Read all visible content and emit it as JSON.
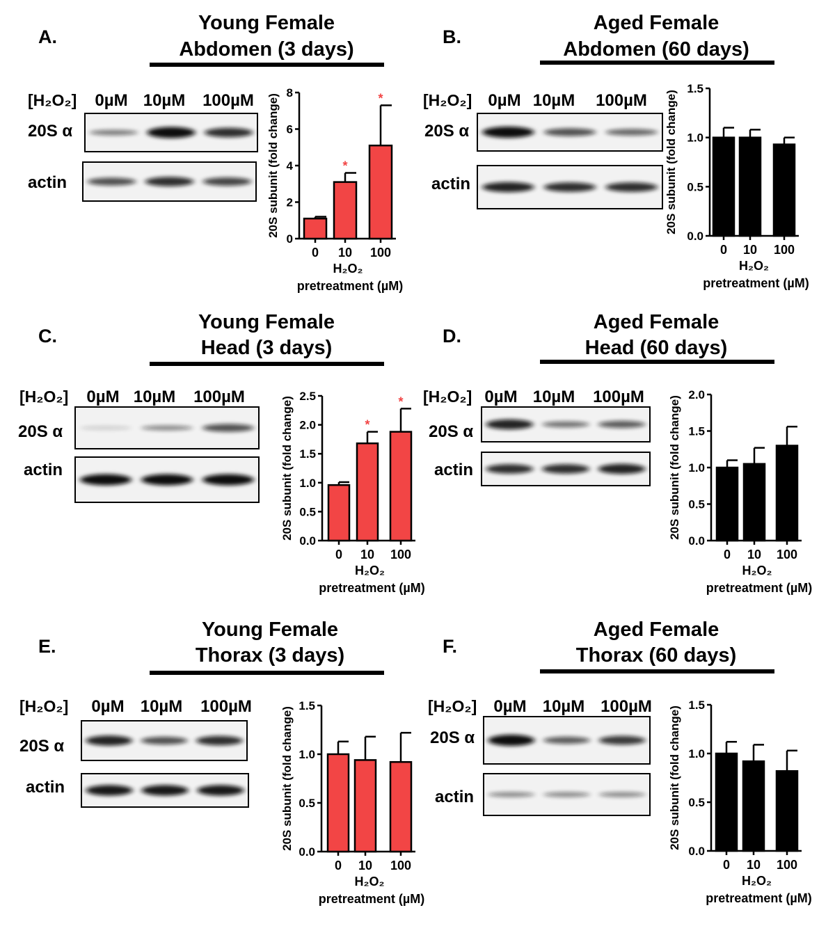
{
  "h2o2_label": "[H₂O₂]",
  "lane_labels": [
    "0µM",
    "10µM",
    "100µM"
  ],
  "row_labels": [
    "20S α",
    "actin"
  ],
  "colors": {
    "young": "#f24545",
    "aged": "#000000",
    "significance": "#f24545"
  },
  "chart_data": [
    {
      "panel": "A.",
      "title": [
        "Young Female",
        "Abdomen (3 days)"
      ],
      "type": "bar",
      "categories": [
        "0",
        "10",
        "100"
      ],
      "values": [
        1.1,
        3.1,
        5.1
      ],
      "errors": [
        0.1,
        0.5,
        2.2
      ],
      "significant": [
        false,
        true,
        true
      ],
      "significance_mark": "*",
      "ylim": [
        0,
        8
      ],
      "yticks": [
        "0",
        "2",
        "4",
        "6",
        "8"
      ],
      "ylabel": "20S subunit (fold change)",
      "xlabel": [
        "H₂O₂",
        "pretreatment (µM)"
      ],
      "series_color": "young"
    },
    {
      "panel": "B.",
      "title": [
        "Aged Female",
        "Abdomen (60 days)"
      ],
      "type": "bar",
      "categories": [
        "0",
        "10",
        "100"
      ],
      "values": [
        1.0,
        1.0,
        0.93
      ],
      "errors": [
        0.1,
        0.08,
        0.07
      ],
      "significant": [
        false,
        false,
        false
      ],
      "significance_mark": "*",
      "ylim": [
        0,
        1.5
      ],
      "yticks": [
        "0.0",
        "0.5",
        "1.0",
        "1.5"
      ],
      "ylabel": "20S subunit (fold change)",
      "xlabel": [
        "H₂O₂",
        "pretreatment (µM)"
      ],
      "series_color": "aged"
    },
    {
      "panel": "C.",
      "title": [
        "Young Female",
        "Head (3 days)"
      ],
      "type": "bar",
      "categories": [
        "0",
        "10",
        "100"
      ],
      "values": [
        0.96,
        1.68,
        1.88
      ],
      "errors": [
        0.05,
        0.2,
        0.4
      ],
      "significant": [
        false,
        true,
        true
      ],
      "significance_mark": "*",
      "ylim": [
        0,
        2.5
      ],
      "yticks": [
        "0.0",
        "0.5",
        "1.0",
        "1.5",
        "2.0",
        "2.5"
      ],
      "ylabel": "20S subunit (fold change)",
      "xlabel": [
        "H₂O₂",
        "pretreatment (µM)"
      ],
      "series_color": "young"
    },
    {
      "panel": "D.",
      "title": [
        "Aged Female",
        "Head (60 days)"
      ],
      "type": "bar",
      "categories": [
        "0",
        "10",
        "100"
      ],
      "values": [
        1.0,
        1.05,
        1.3
      ],
      "errors": [
        0.1,
        0.22,
        0.26
      ],
      "significant": [
        false,
        false,
        false
      ],
      "significance_mark": "*",
      "ylim": [
        0,
        2.0
      ],
      "yticks": [
        "0.0",
        "0.5",
        "1.0",
        "1.5",
        "2.0"
      ],
      "ylabel": "20S subunit (fold change)",
      "xlabel": [
        "H₂O₂",
        "pretreatment (µM)"
      ],
      "series_color": "aged"
    },
    {
      "panel": "E.",
      "title": [
        "Young Female",
        "Thorax (3 days)"
      ],
      "type": "bar",
      "categories": [
        "0",
        "10",
        "100"
      ],
      "values": [
        1.0,
        0.94,
        0.92
      ],
      "errors": [
        0.13,
        0.24,
        0.3
      ],
      "significant": [
        false,
        false,
        false
      ],
      "significance_mark": "*",
      "ylim": [
        0,
        1.5
      ],
      "yticks": [
        "0.0",
        "0.5",
        "1.0",
        "1.5"
      ],
      "ylabel": "20S subunit (fold change)",
      "xlabel": [
        "H₂O₂",
        "pretreatment (µM)"
      ],
      "series_color": "young"
    },
    {
      "panel": "F.",
      "title": [
        "Aged Female",
        "Thorax (60 days)"
      ],
      "type": "bar",
      "categories": [
        "0",
        "10",
        "100"
      ],
      "values": [
        1.0,
        0.92,
        0.82
      ],
      "errors": [
        0.12,
        0.17,
        0.21
      ],
      "significant": [
        false,
        false,
        false
      ],
      "significance_mark": "*",
      "ylim": [
        0,
        1.5
      ],
      "yticks": [
        "0.0",
        "0.5",
        "1.0",
        "1.5"
      ],
      "ylabel": "20S subunit (fold change)",
      "xlabel": [
        "H₂O₂",
        "pretreatment (µM)"
      ],
      "series_color": "aged"
    }
  ]
}
